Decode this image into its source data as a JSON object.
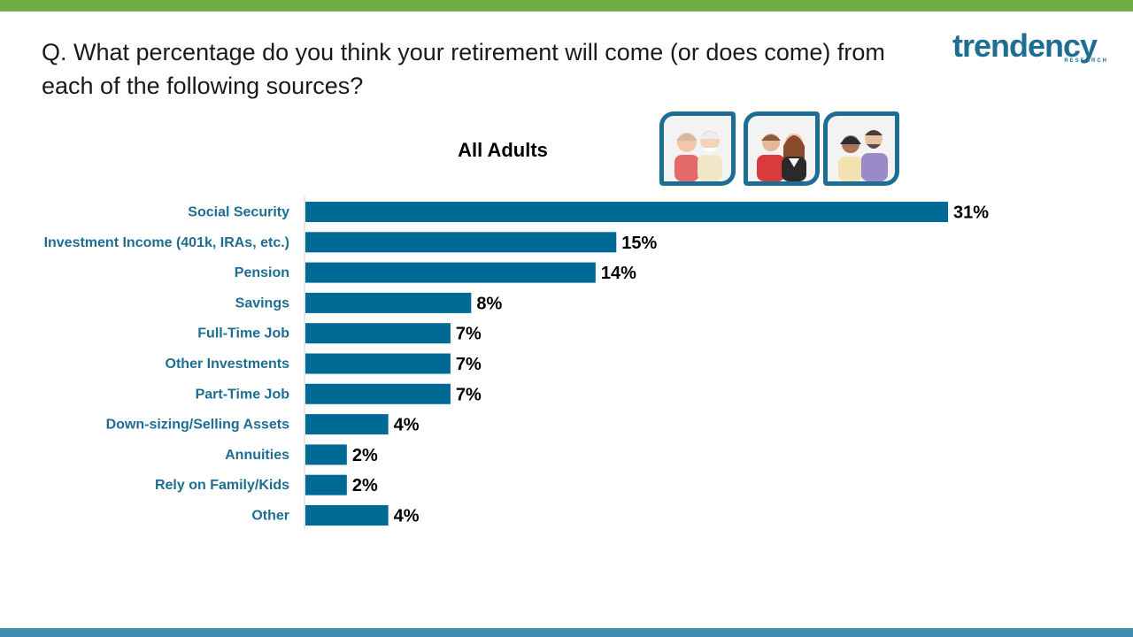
{
  "question": "Q. What percentage do you think your retirement will come (or does come) from each of the following sources?",
  "logo": {
    "word": "trendency",
    "sub": "RESEARCH"
  },
  "colors": {
    "bar": "#006a96",
    "label": "#1e6e93",
    "top_bar": "#70ad47",
    "bottom_bar": "#3f8db0"
  },
  "chart_data": {
    "type": "bar",
    "orientation": "horizontal",
    "title": "All Adults",
    "categories": [
      "Social Security",
      "Investment Income (401k, IRAs, etc.)",
      "Pension",
      "Savings",
      "Full-Time Job",
      "Other Investments",
      "Part-Time Job",
      "Down-sizing/Selling Assets",
      "Annuities",
      "Rely on Family/Kids",
      "Other"
    ],
    "values": [
      31,
      15,
      14,
      8,
      7,
      7,
      7,
      4,
      2,
      2,
      4
    ],
    "value_labels": [
      "31%",
      "15%",
      "14%",
      "8%",
      "7%",
      "7%",
      "7%",
      "4%",
      "2%",
      "2%",
      "4%"
    ],
    "grid": false,
    "legend": "none"
  }
}
